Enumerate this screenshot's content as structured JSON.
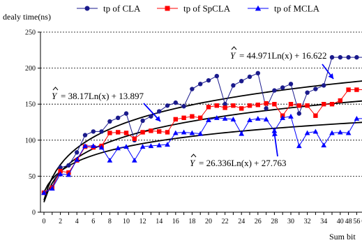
{
  "chart_data": {
    "type": "line",
    "xlabel": "Sum bit",
    "ylabel": "dealy time(ns)",
    "ylim": [
      0,
      250
    ],
    "yticks": [
      0,
      50,
      100,
      150,
      200,
      250
    ],
    "grid": "horizontal dashed",
    "legend": "top",
    "categories": [
      "0",
      "1",
      "2",
      "3",
      "4",
      "5",
      "6",
      "7",
      "8",
      "9",
      "10",
      "11",
      "12",
      "13",
      "14",
      "15",
      "16",
      "17",
      "18",
      "19",
      "20",
      "21",
      "22",
      "23",
      "24",
      "25",
      "26",
      "27",
      "28",
      "29",
      "30",
      "31",
      "32",
      "33",
      "34",
      "35",
      "36",
      "37",
      "38",
      "39"
    ],
    "xtick_labels": [
      {
        "index": 0,
        "label": "0"
      },
      {
        "index": 2,
        "label": "2"
      },
      {
        "index": 4,
        "label": "4"
      },
      {
        "index": 6,
        "label": "6"
      },
      {
        "index": 8,
        "label": "8"
      },
      {
        "index": 10,
        "label": "10"
      },
      {
        "index": 12,
        "label": "12"
      },
      {
        "index": 14,
        "label": "14"
      },
      {
        "index": 16,
        "label": "16"
      },
      {
        "index": 18,
        "label": "18"
      },
      {
        "index": 20,
        "label": "20"
      },
      {
        "index": 22,
        "label": "22"
      },
      {
        "index": 24,
        "label": "24"
      },
      {
        "index": 26,
        "label": "26"
      },
      {
        "index": 28,
        "label": "28"
      },
      {
        "index": 30,
        "label": "30"
      },
      {
        "index": 32,
        "label": "32"
      },
      {
        "index": 34,
        "label": "34"
      },
      {
        "index": 36,
        "label": "40"
      },
      {
        "index": 37,
        "label": "48"
      },
      {
        "index": 38,
        "label": "56"
      },
      {
        "index": 39,
        "label": "63"
      }
    ],
    "series": [
      {
        "name": "tp of CLA",
        "color": "#1a1a8c",
        "marker": "circle",
        "values": [
          27,
          35,
          62,
          65,
          83,
          107,
          112,
          112,
          126,
          131,
          137,
          100,
          127,
          133,
          140,
          148,
          152,
          147,
          171,
          178,
          183,
          189,
          150,
          176,
          182,
          188,
          193,
          144,
          169,
          173,
          178,
          137,
          166,
          171,
          176,
          215,
          215,
          215,
          215,
          215
        ]
      },
      {
        "name": "tp of SpCLA",
        "color": "#ff0000",
        "marker": "square",
        "values": [
          27,
          34,
          57,
          55,
          72,
          91,
          90,
          92,
          110,
          111,
          110,
          102,
          111,
          113,
          112,
          111,
          129,
          131,
          133,
          131,
          146,
          148,
          145,
          148,
          144,
          148,
          149,
          151,
          150,
          134,
          150,
          148,
          148,
          134,
          150,
          150,
          155,
          170,
          170,
          170
        ]
      },
      {
        "name": "tp of MCLA",
        "color": "#0000ff",
        "marker": "triangle",
        "values": [
          27,
          33,
          53,
          52,
          73,
          92,
          92,
          90,
          72,
          89,
          91,
          72,
          91,
          92,
          93,
          94,
          110,
          111,
          110,
          109,
          128,
          131,
          130,
          129,
          109,
          128,
          130,
          129,
          113,
          131,
          133,
          92,
          110,
          112,
          93,
          110,
          111,
          110,
          130,
          130
        ]
      }
    ],
    "trendlines": [
      {
        "equation": "= 44.971Ln(x) + 16.622",
        "a": 44.971,
        "b": 16.622
      },
      {
        "equation": "= 38.17Ln(x) + 13.897",
        "a": 38.17,
        "b": 13.897
      },
      {
        "equation": "= 26.336Ln(x) + 27.763",
        "a": 26.336,
        "b": 27.763
      }
    ],
    "equation_symbol": "Y"
  }
}
